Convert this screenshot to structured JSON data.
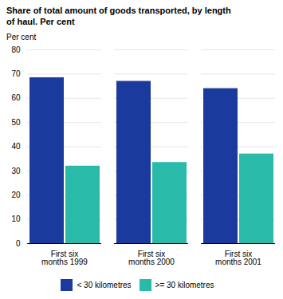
{
  "chart_data": {
    "type": "bar",
    "title": "Share of total amount of goods transported, by length\nof haul. Per cent",
    "ylabel": "Per cent",
    "categories": [
      "First six\nmonths 1999",
      "First six\nmonths 2000",
      "First six\nmonths 2001"
    ],
    "series": [
      {
        "name": "< 30 kilometres",
        "color": "#1a3a9e",
        "values": [
          68.5,
          67.0,
          64.0
        ]
      },
      {
        "name": ">= 30 kilometres",
        "color": "#2abaaa",
        "values": [
          32.0,
          33.5,
          37.0
        ]
      }
    ],
    "ylim": [
      0,
      80
    ],
    "yticks": [
      0,
      10,
      20,
      30,
      40,
      50,
      60,
      70,
      80
    ],
    "grid": true,
    "legend": "bottom"
  }
}
